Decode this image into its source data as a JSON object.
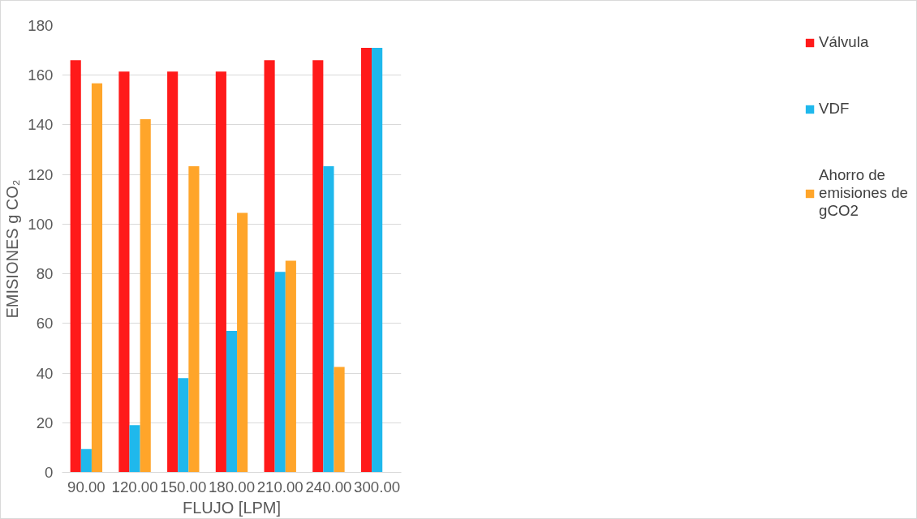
{
  "chart_data": {
    "type": "bar",
    "xlabel": "FLUJO [LPM]",
    "ylabel": "EMISIONES g CO₂",
    "categories": [
      "90.00",
      "120.00",
      "150.00",
      "180.00",
      "210.00",
      "240.00",
      "300.00"
    ],
    "series": [
      {
        "name": "Válvula",
        "color": "#ff1a1a",
        "values": [
          166,
          161.5,
          161.5,
          161.5,
          166,
          166,
          171
        ]
      },
      {
        "name": "VDF",
        "color": "#1fb8ec",
        "values": [
          9.4,
          19,
          38,
          57,
          80.8,
          123.3,
          171
        ]
      },
      {
        "name": "Ahorro de emisiones de gCO2",
        "color": "#ffa52a",
        "values": [
          156.7,
          142.3,
          123.3,
          104.5,
          85.3,
          42.5,
          0
        ]
      }
    ],
    "ylim": [
      0,
      180
    ],
    "yticks": [
      0,
      20,
      40,
      60,
      80,
      100,
      120,
      140,
      160,
      180
    ],
    "grid": "y",
    "legend": "right"
  }
}
